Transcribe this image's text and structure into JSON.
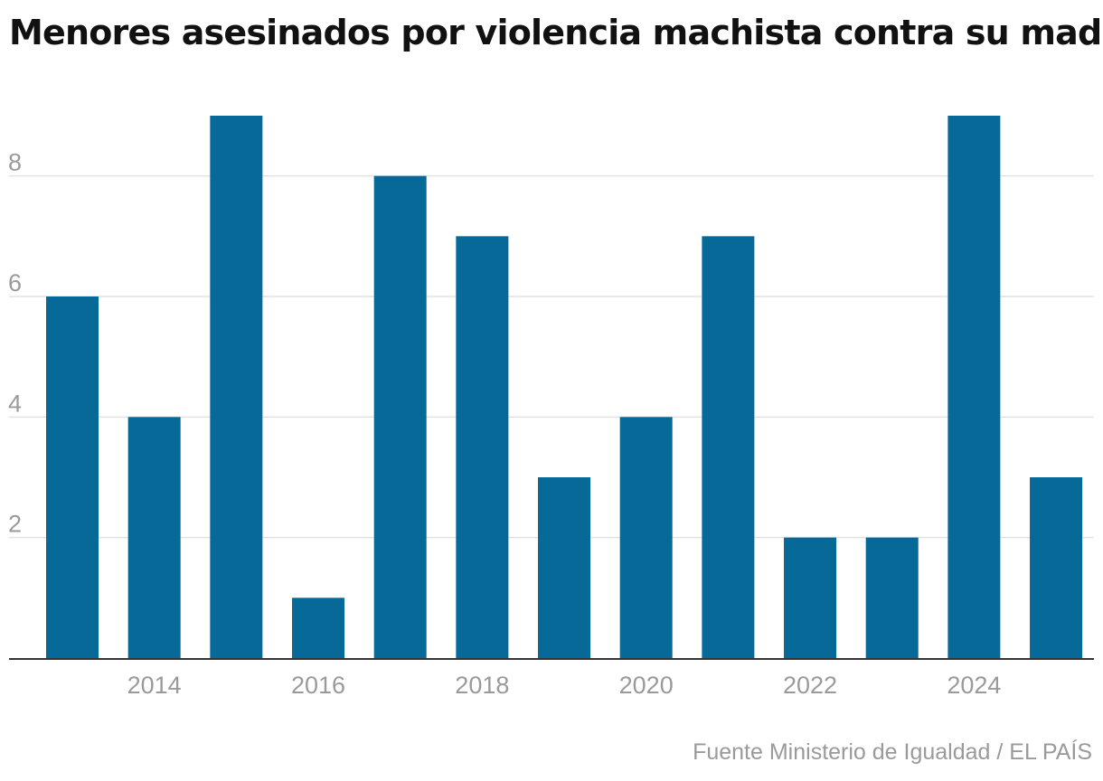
{
  "title": "Menores asesinados por violencia machista contra su madre",
  "source": "Fuente Ministerio de Igualdad / EL PAÍS",
  "colors": {
    "bar": "#066998",
    "grid": "#e2e2e2",
    "axis": "#333333",
    "tick_text": "#9a9a9a"
  },
  "chart_data": {
    "type": "bar",
    "categories": [
      "2013",
      "2014",
      "2015",
      "2016",
      "2017",
      "2018",
      "2019",
      "2020",
      "2021",
      "2022",
      "2023",
      "2024",
      "2025"
    ],
    "values": [
      6,
      4,
      9,
      1,
      8,
      7,
      3,
      4,
      7,
      2,
      2,
      9,
      3
    ],
    "title": "Menores asesinados por violencia machista contra su madre",
    "xlabel": "",
    "ylabel": "",
    "ylim": [
      0,
      9
    ],
    "y_ticks": [
      2,
      4,
      6,
      8
    ],
    "x_tick_labels": [
      "2014",
      "2016",
      "2018",
      "2020",
      "2022",
      "2024"
    ],
    "grid": true,
    "legend": "none"
  }
}
